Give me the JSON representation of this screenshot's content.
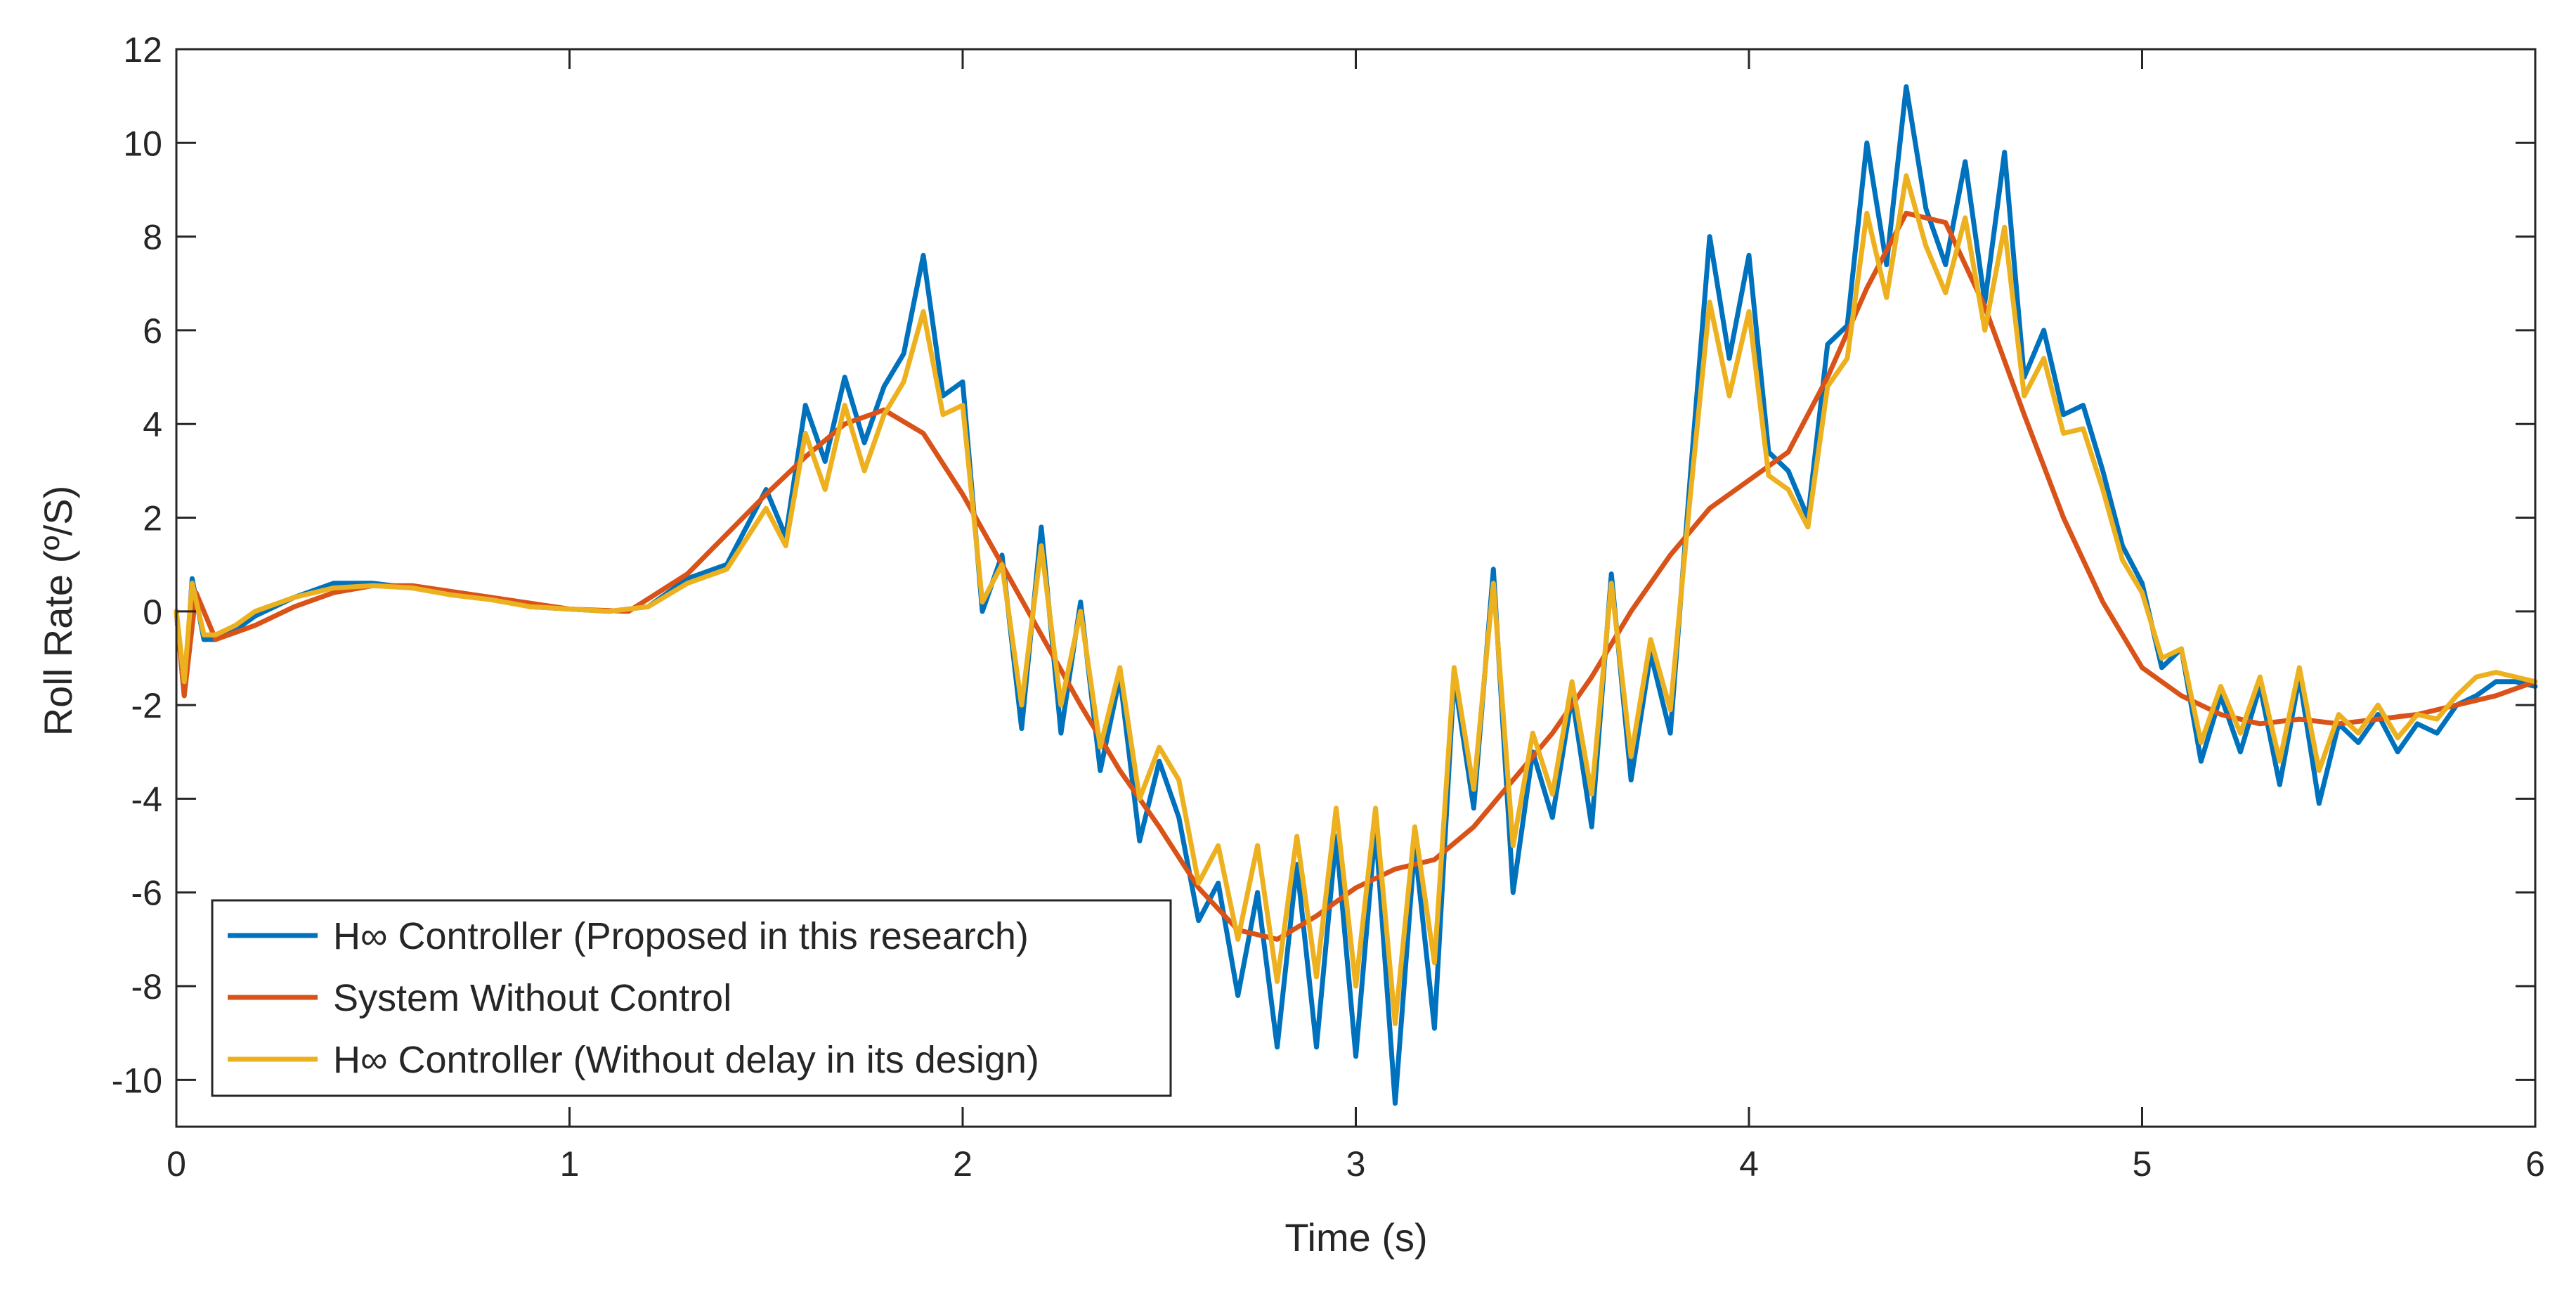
{
  "chart_data": {
    "type": "line",
    "title": "",
    "xlabel": "Time (s)",
    "ylabel": "Roll Rate (º/S)",
    "xlim": [
      0,
      6
    ],
    "ylim": [
      -11,
      12
    ],
    "xticks": [
      0,
      1,
      2,
      3,
      4,
      5,
      6
    ],
    "yticks": [
      -10,
      -8,
      -6,
      -4,
      -2,
      0,
      2,
      4,
      6,
      8,
      10,
      12
    ],
    "grid": false,
    "legend_position": "bottom-left",
    "colors": {
      "blue": "#0072BD",
      "orange": "#D95319",
      "yellow": "#EDB120",
      "axis": "#262626"
    },
    "series": [
      {
        "name": "H∞ Controller (Proposed in this research)",
        "color": "#0072BD",
        "x": [
          0,
          0.02,
          0.04,
          0.07,
          0.1,
          0.15,
          0.2,
          0.3,
          0.4,
          0.5,
          0.6,
          0.7,
          0.8,
          0.9,
          1.0,
          1.1,
          1.2,
          1.3,
          1.4,
          1.5,
          1.55,
          1.6,
          1.65,
          1.7,
          1.75,
          1.8,
          1.85,
          1.9,
          1.95,
          2.0,
          2.05,
          2.1,
          2.15,
          2.2,
          2.25,
          2.3,
          2.35,
          2.4,
          2.45,
          2.5,
          2.55,
          2.6,
          2.65,
          2.7,
          2.75,
          2.8,
          2.85,
          2.9,
          2.95,
          3.0,
          3.05,
          3.1,
          3.15,
          3.2,
          3.25,
          3.3,
          3.35,
          3.4,
          3.45,
          3.5,
          3.55,
          3.6,
          3.65,
          3.7,
          3.75,
          3.8,
          3.85,
          3.9,
          3.95,
          4.0,
          4.05,
          4.1,
          4.15,
          4.2,
          4.25,
          4.3,
          4.35,
          4.4,
          4.45,
          4.5,
          4.55,
          4.6,
          4.65,
          4.7,
          4.75,
          4.8,
          4.85,
          4.9,
          4.95,
          5.0,
          5.05,
          5.1,
          5.15,
          5.2,
          5.25,
          5.3,
          5.35,
          5.4,
          5.45,
          5.5,
          5.55,
          5.6,
          5.65,
          5.7,
          5.75,
          5.8,
          5.85,
          5.9,
          5.95,
          6.0
        ],
        "y": [
          0,
          -1.8,
          0.7,
          -0.6,
          -0.6,
          -0.4,
          -0.1,
          0.3,
          0.6,
          0.6,
          0.5,
          0.4,
          0.3,
          0.1,
          0.05,
          0.0,
          0.1,
          0.7,
          1.0,
          2.6,
          1.6,
          4.4,
          3.2,
          5.0,
          3.6,
          4.8,
          5.5,
          7.6,
          4.6,
          4.9,
          0.0,
          1.2,
          -2.5,
          1.8,
          -2.6,
          0.2,
          -3.4,
          -1.4,
          -4.9,
          -3.2,
          -4.4,
          -6.6,
          -5.8,
          -8.2,
          -6.0,
          -9.3,
          -5.4,
          -9.3,
          -4.8,
          -9.5,
          -4.6,
          -10.5,
          -5.0,
          -8.9,
          -1.4,
          -4.2,
          0.9,
          -6.0,
          -3.0,
          -4.4,
          -1.8,
          -4.6,
          0.8,
          -3.6,
          -0.9,
          -2.6,
          2.8,
          8.0,
          5.4,
          7.6,
          3.4,
          3.0,
          2.0,
          5.7,
          6.1,
          10.0,
          7.4,
          11.2,
          8.6,
          7.4,
          9.6,
          6.6,
          9.8,
          5.0,
          6.0,
          4.2,
          4.4,
          3.0,
          1.4,
          0.6,
          -1.2,
          -0.8,
          -3.2,
          -1.8,
          -3.0,
          -1.6,
          -3.7,
          -1.4,
          -4.1,
          -2.4,
          -2.8,
          -2.2,
          -3.0,
          -2.4,
          -2.6,
          -2.0,
          -1.8,
          -1.5,
          -1.5,
          -1.6
        ]
      },
      {
        "name": "System Without Control",
        "color": "#D95319",
        "x": [
          0,
          0.02,
          0.05,
          0.1,
          0.2,
          0.3,
          0.4,
          0.5,
          0.6,
          0.8,
          1.0,
          1.15,
          1.3,
          1.5,
          1.6,
          1.7,
          1.8,
          1.9,
          2.0,
          2.1,
          2.2,
          2.3,
          2.4,
          2.5,
          2.6,
          2.7,
          2.8,
          2.9,
          3.0,
          3.1,
          3.2,
          3.3,
          3.4,
          3.5,
          3.6,
          3.7,
          3.8,
          3.9,
          4.0,
          4.1,
          4.2,
          4.3,
          4.4,
          4.5,
          4.6,
          4.7,
          4.8,
          4.9,
          5.0,
          5.1,
          5.2,
          5.3,
          5.4,
          5.5,
          5.6,
          5.7,
          5.8,
          5.9,
          6.0
        ],
        "y": [
          0,
          -1.8,
          0.4,
          -0.6,
          -0.3,
          0.1,
          0.4,
          0.55,
          0.55,
          0.3,
          0.05,
          0.0,
          0.8,
          2.5,
          3.3,
          4.0,
          4.3,
          3.8,
          2.5,
          1.0,
          -0.5,
          -2.0,
          -3.4,
          -4.6,
          -5.9,
          -6.8,
          -7.0,
          -6.5,
          -5.9,
          -5.5,
          -5.3,
          -4.6,
          -3.6,
          -2.6,
          -1.4,
          0.0,
          1.2,
          2.2,
          2.8,
          3.4,
          5.0,
          6.9,
          8.5,
          8.3,
          6.5,
          4.2,
          2.0,
          0.2,
          -1.2,
          -1.8,
          -2.2,
          -2.4,
          -2.3,
          -2.4,
          -2.3,
          -2.2,
          -2.0,
          -1.8,
          -1.5
        ]
      },
      {
        "name": "H∞ Controller (Without delay in its design)",
        "color": "#EDB120",
        "x": [
          0,
          0.02,
          0.04,
          0.07,
          0.1,
          0.15,
          0.2,
          0.3,
          0.4,
          0.5,
          0.6,
          0.7,
          0.8,
          0.9,
          1.0,
          1.1,
          1.2,
          1.3,
          1.4,
          1.5,
          1.55,
          1.6,
          1.65,
          1.7,
          1.75,
          1.8,
          1.85,
          1.9,
          1.95,
          2.0,
          2.05,
          2.1,
          2.15,
          2.2,
          2.25,
          2.3,
          2.35,
          2.4,
          2.45,
          2.5,
          2.55,
          2.6,
          2.65,
          2.7,
          2.75,
          2.8,
          2.85,
          2.9,
          2.95,
          3.0,
          3.05,
          3.1,
          3.15,
          3.2,
          3.25,
          3.3,
          3.35,
          3.4,
          3.45,
          3.5,
          3.55,
          3.6,
          3.65,
          3.7,
          3.75,
          3.8,
          3.85,
          3.9,
          3.95,
          4.0,
          4.05,
          4.1,
          4.15,
          4.2,
          4.25,
          4.3,
          4.35,
          4.4,
          4.45,
          4.5,
          4.55,
          4.6,
          4.65,
          4.7,
          4.75,
          4.8,
          4.85,
          4.9,
          4.95,
          5.0,
          5.05,
          5.1,
          5.15,
          5.2,
          5.25,
          5.3,
          5.35,
          5.4,
          5.45,
          5.5,
          5.55,
          5.6,
          5.65,
          5.7,
          5.75,
          5.8,
          5.85,
          5.9,
          5.95,
          6.0
        ],
        "y": [
          0,
          -1.5,
          0.6,
          -0.5,
          -0.5,
          -0.3,
          0.0,
          0.3,
          0.5,
          0.55,
          0.5,
          0.35,
          0.25,
          0.1,
          0.05,
          0.0,
          0.1,
          0.6,
          0.9,
          2.2,
          1.4,
          3.8,
          2.6,
          4.4,
          3.0,
          4.2,
          4.9,
          6.4,
          4.2,
          4.4,
          0.2,
          1.0,
          -2.0,
          1.4,
          -2.0,
          0.0,
          -2.9,
          -1.2,
          -4.0,
          -2.9,
          -3.6,
          -5.8,
          -5.0,
          -7.0,
          -5.0,
          -7.9,
          -4.8,
          -7.8,
          -4.2,
          -8.0,
          -4.2,
          -8.8,
          -4.6,
          -7.5,
          -1.2,
          -3.8,
          0.6,
          -5.0,
          -2.6,
          -3.9,
          -1.5,
          -3.9,
          0.6,
          -3.1,
          -0.6,
          -2.1,
          2.4,
          6.6,
          4.6,
          6.4,
          2.9,
          2.6,
          1.8,
          4.8,
          5.4,
          8.5,
          6.7,
          9.3,
          7.8,
          6.8,
          8.4,
          6.0,
          8.2,
          4.6,
          5.4,
          3.8,
          3.9,
          2.6,
          1.1,
          0.4,
          -1.0,
          -0.8,
          -2.8,
          -1.6,
          -2.6,
          -1.4,
          -3.2,
          -1.2,
          -3.4,
          -2.2,
          -2.6,
          -2.0,
          -2.7,
          -2.2,
          -2.3,
          -1.8,
          -1.4,
          -1.3,
          -1.4,
          -1.5
        ]
      }
    ]
  }
}
